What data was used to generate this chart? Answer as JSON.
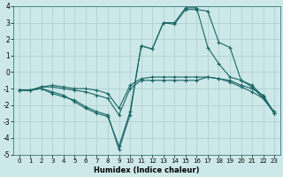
{
  "xlabel": "Humidex (Indice chaleur)",
  "xlim": [
    -0.5,
    23.5
  ],
  "ylim": [
    -5,
    4
  ],
  "xticks": [
    0,
    1,
    2,
    3,
    4,
    5,
    6,
    7,
    8,
    9,
    10,
    11,
    12,
    13,
    14,
    15,
    16,
    17,
    18,
    19,
    20,
    21,
    22,
    23
  ],
  "yticks": [
    -5,
    -4,
    -3,
    -2,
    -1,
    0,
    1,
    2,
    3,
    4
  ],
  "background_color": "#cde8e8",
  "grid_color": "#aacece",
  "line_color": "#1a6666",
  "lines": [
    {
      "x": [
        0,
        1,
        2,
        3,
        4,
        5,
        6,
        7,
        8,
        9,
        10,
        11,
        12,
        13,
        14,
        15,
        16,
        17,
        18,
        19,
        20,
        21,
        22,
        23
      ],
      "y": [
        -1.1,
        -1.1,
        -1.0,
        -1.3,
        -1.5,
        -1.7,
        -2.1,
        -2.4,
        -2.6,
        -4.7,
        -2.6,
        1.6,
        1.4,
        3.0,
        2.9,
        3.8,
        3.8,
        3.7,
        1.8,
        1.5,
        -0.5,
        -0.9,
        -1.6,
        -2.5
      ]
    },
    {
      "x": [
        0,
        1,
        2,
        3,
        4,
        5,
        6,
        7,
        8,
        9,
        10,
        11,
        12,
        13,
        14,
        15,
        16,
        17,
        18,
        19,
        20,
        21,
        22,
        23
      ],
      "y": [
        -1.1,
        -1.1,
        -1.0,
        -1.2,
        -1.4,
        -1.8,
        -2.2,
        -2.5,
        -2.7,
        -4.5,
        -2.4,
        1.6,
        1.4,
        3.0,
        3.0,
        3.9,
        3.9,
        1.5,
        0.5,
        -0.3,
        -0.5,
        -0.8,
        -1.5,
        -2.5
      ]
    },
    {
      "x": [
        0,
        1,
        2,
        3,
        4,
        5,
        6,
        7,
        8,
        9,
        10,
        11,
        12,
        13,
        14,
        15,
        16,
        17,
        18,
        19,
        20,
        21,
        22,
        23
      ],
      "y": [
        -1.1,
        -1.1,
        -0.9,
        -0.9,
        -1.0,
        -1.1,
        -1.2,
        -1.4,
        -1.6,
        -2.6,
        -1.0,
        -0.5,
        -0.5,
        -0.5,
        -0.5,
        -0.5,
        -0.5,
        -0.3,
        -0.4,
        -0.5,
        -0.8,
        -1.0,
        -1.4,
        -2.5
      ]
    },
    {
      "x": [
        0,
        1,
        2,
        3,
        4,
        5,
        6,
        7,
        8,
        9,
        10,
        11,
        12,
        13,
        14,
        15,
        16,
        17,
        18,
        19,
        20,
        21,
        22,
        23
      ],
      "y": [
        -1.1,
        -1.1,
        -0.9,
        -0.8,
        -0.9,
        -1.0,
        -1.0,
        -1.1,
        -1.3,
        -2.2,
        -0.8,
        -0.4,
        -0.3,
        -0.3,
        -0.3,
        -0.3,
        -0.3,
        -0.3,
        -0.4,
        -0.6,
        -0.9,
        -1.2,
        -1.6,
        -2.4
      ]
    }
  ]
}
